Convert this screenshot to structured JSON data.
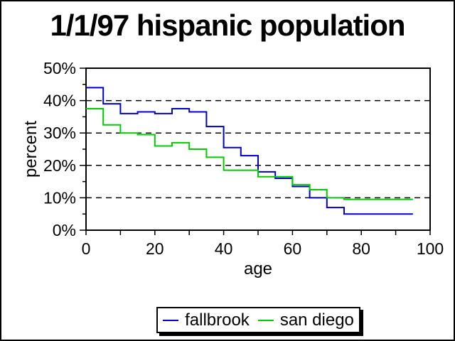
{
  "title": "1/1/97 hispanic population",
  "chart_data": {
    "type": "line",
    "subtype": "step",
    "title": "1/1/97 hispanic population",
    "xlabel": "age",
    "ylabel": "percent",
    "xlim": [
      0,
      100
    ],
    "ylim": [
      0,
      50
    ],
    "grid": "horizontal dashed lines at 10%, 20%, 30%, 40%",
    "legend_position": "bottom",
    "bin_width": 5,
    "bin_starts": [
      0,
      5,
      10,
      15,
      20,
      25,
      30,
      35,
      40,
      45,
      50,
      55,
      60,
      65,
      70,
      75,
      80,
      85,
      90
    ],
    "x_ticks": [
      {
        "value": 0,
        "label": "0"
      },
      {
        "value": 20,
        "label": "20"
      },
      {
        "value": 40,
        "label": "40"
      },
      {
        "value": 60,
        "label": "60"
      },
      {
        "value": 80,
        "label": "80"
      },
      {
        "value": 100,
        "label": "100"
      }
    ],
    "x_minor_tick_step": 10,
    "y_ticks": [
      {
        "value": 0,
        "label": "0%"
      },
      {
        "value": 10,
        "label": "10%"
      },
      {
        "value": 20,
        "label": "20%"
      },
      {
        "value": 30,
        "label": "30%"
      },
      {
        "value": 40,
        "label": "40%"
      },
      {
        "value": 50,
        "label": "50%"
      }
    ],
    "y_minor_tick_step": 5,
    "gridlines_y": [
      10,
      20,
      30,
      40
    ],
    "series": [
      {
        "name": "fallbrook",
        "color": "#0000cc",
        "values": [
          44,
          39,
          36,
          36.5,
          36,
          37.5,
          36.5,
          32,
          25.5,
          23,
          18,
          16,
          13.5,
          10,
          7,
          5,
          5,
          5,
          5
        ]
      },
      {
        "name": "san diego",
        "color": "#00cc00",
        "values": [
          37.5,
          32.5,
          30,
          29.5,
          26,
          27,
          25,
          22.5,
          18.5,
          18.5,
          16.5,
          16.5,
          14,
          12.5,
          10,
          9.5,
          9.5,
          9.5,
          9.5
        ]
      }
    ]
  },
  "legend": {
    "items": [
      {
        "label": "fallbrook",
        "color": "#0000cc"
      },
      {
        "label": "san diego",
        "color": "#00cc00"
      }
    ]
  }
}
